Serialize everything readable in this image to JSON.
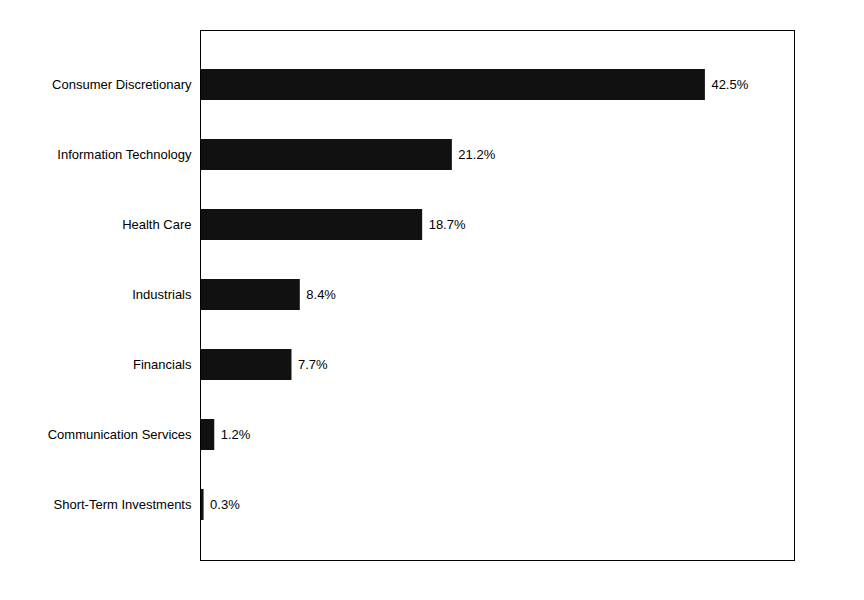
{
  "chart_data": {
    "type": "bar",
    "orientation": "horizontal",
    "categories": [
      "Short-Term Investments",
      "Communication Services",
      "Financials",
      "Industrials",
      "Health Care",
      "Information Technology",
      "Consumer Discretionary"
    ],
    "values": [
      0.3,
      1.2,
      7.7,
      8.4,
      18.7,
      21.2,
      42.5
    ],
    "value_labels": [
      "0.3%",
      "1.2%",
      "7.7%",
      "8.4%",
      "18.7%",
      "21.2%",
      "42.5%"
    ],
    "color": "#111111",
    "xlim": [
      0,
      50
    ],
    "xticks": [],
    "tick_labels": "y",
    "data_labels": true
  }
}
